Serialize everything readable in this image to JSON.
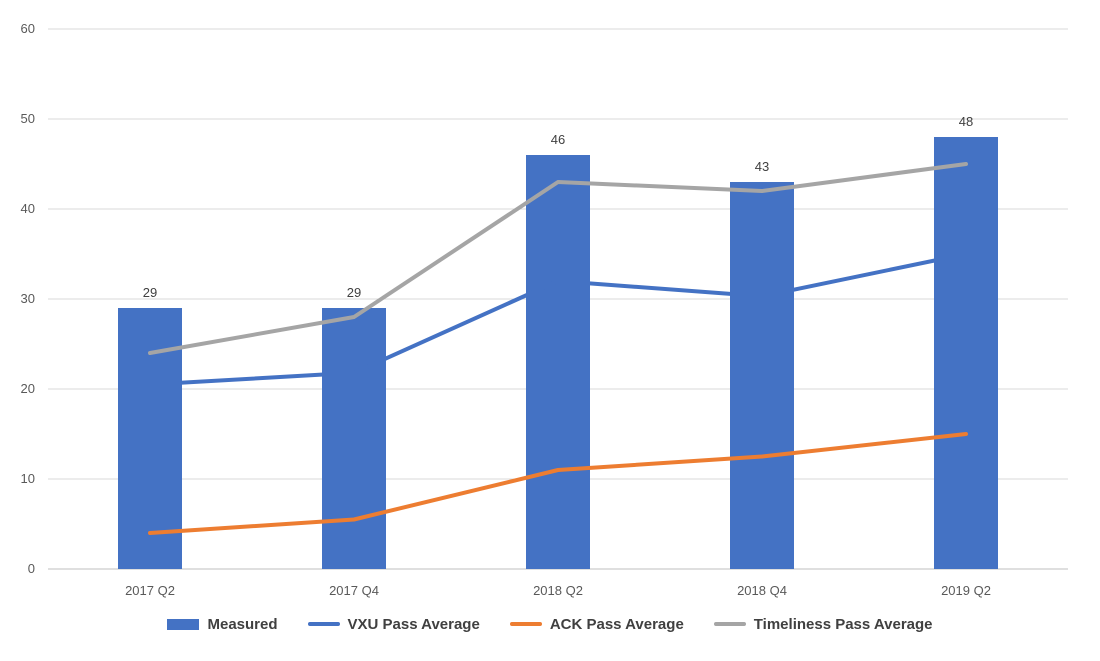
{
  "chart_data": {
    "type": "bar",
    "categories": [
      "2017 Q2",
      "2017 Q4",
      "2018 Q2",
      "2018 Q4",
      "2019 Q2"
    ],
    "ylim": [
      0,
      60
    ],
    "yticks": [
      "0",
      "10",
      "20",
      "30",
      "40",
      "50",
      "60"
    ],
    "grid": true,
    "legend_position": "bottom",
    "series": [
      {
        "name": "Measured",
        "kind": "bar",
        "color": "#4472C4",
        "values": [
          29,
          29,
          46,
          43,
          48
        ],
        "labels": [
          "29",
          "29",
          "46",
          "43",
          "48"
        ]
      },
      {
        "name": "VXU Pass Average",
        "kind": "line",
        "color": "#4472C4",
        "values": [
          20.5,
          21.8,
          32,
          30.3,
          35
        ]
      },
      {
        "name": "ACK Pass Average",
        "kind": "line",
        "color": "#ED7D31",
        "values": [
          4,
          5.5,
          11,
          12.5,
          15
        ]
      },
      {
        "name": "Timeliness Pass Average",
        "kind": "line",
        "color": "#A5A5A5",
        "values": [
          24,
          28,
          43,
          42,
          45
        ]
      }
    ]
  }
}
